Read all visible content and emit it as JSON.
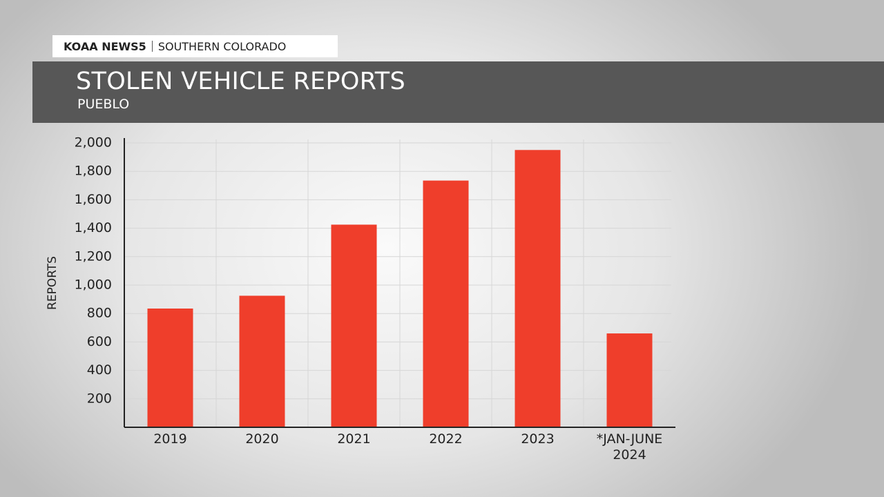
{
  "header": {
    "brand": "KOAA NEWS5",
    "region": "SOUTHERN COLORADO"
  },
  "chart_data": {
    "type": "bar",
    "title": "STOLEN VEHICLE REPORTS",
    "subtitle": "PUEBLO",
    "y_label": "REPORTS",
    "categories": [
      "2019",
      "2020",
      "2021",
      "2022",
      "2023",
      "*JAN-JUNE 2024"
    ],
    "values": [
      835,
      925,
      1425,
      1735,
      1950,
      660
    ],
    "color": "#ef3e2b",
    "ylim": [
      0,
      2000
    ],
    "yticks": [
      200,
      400,
      600,
      800,
      {
        "value": 1000,
        "label": "1,000"
      },
      {
        "value": 1200,
        "label": "1,200"
      },
      {
        "value": 1400,
        "label": "1,400"
      },
      {
        "value": 1600,
        "label": "1,600"
      },
      {
        "value": 1800,
        "label": "1,800"
      },
      {
        "value": 2000,
        "label": "2,000"
      }
    ],
    "grid": true
  }
}
